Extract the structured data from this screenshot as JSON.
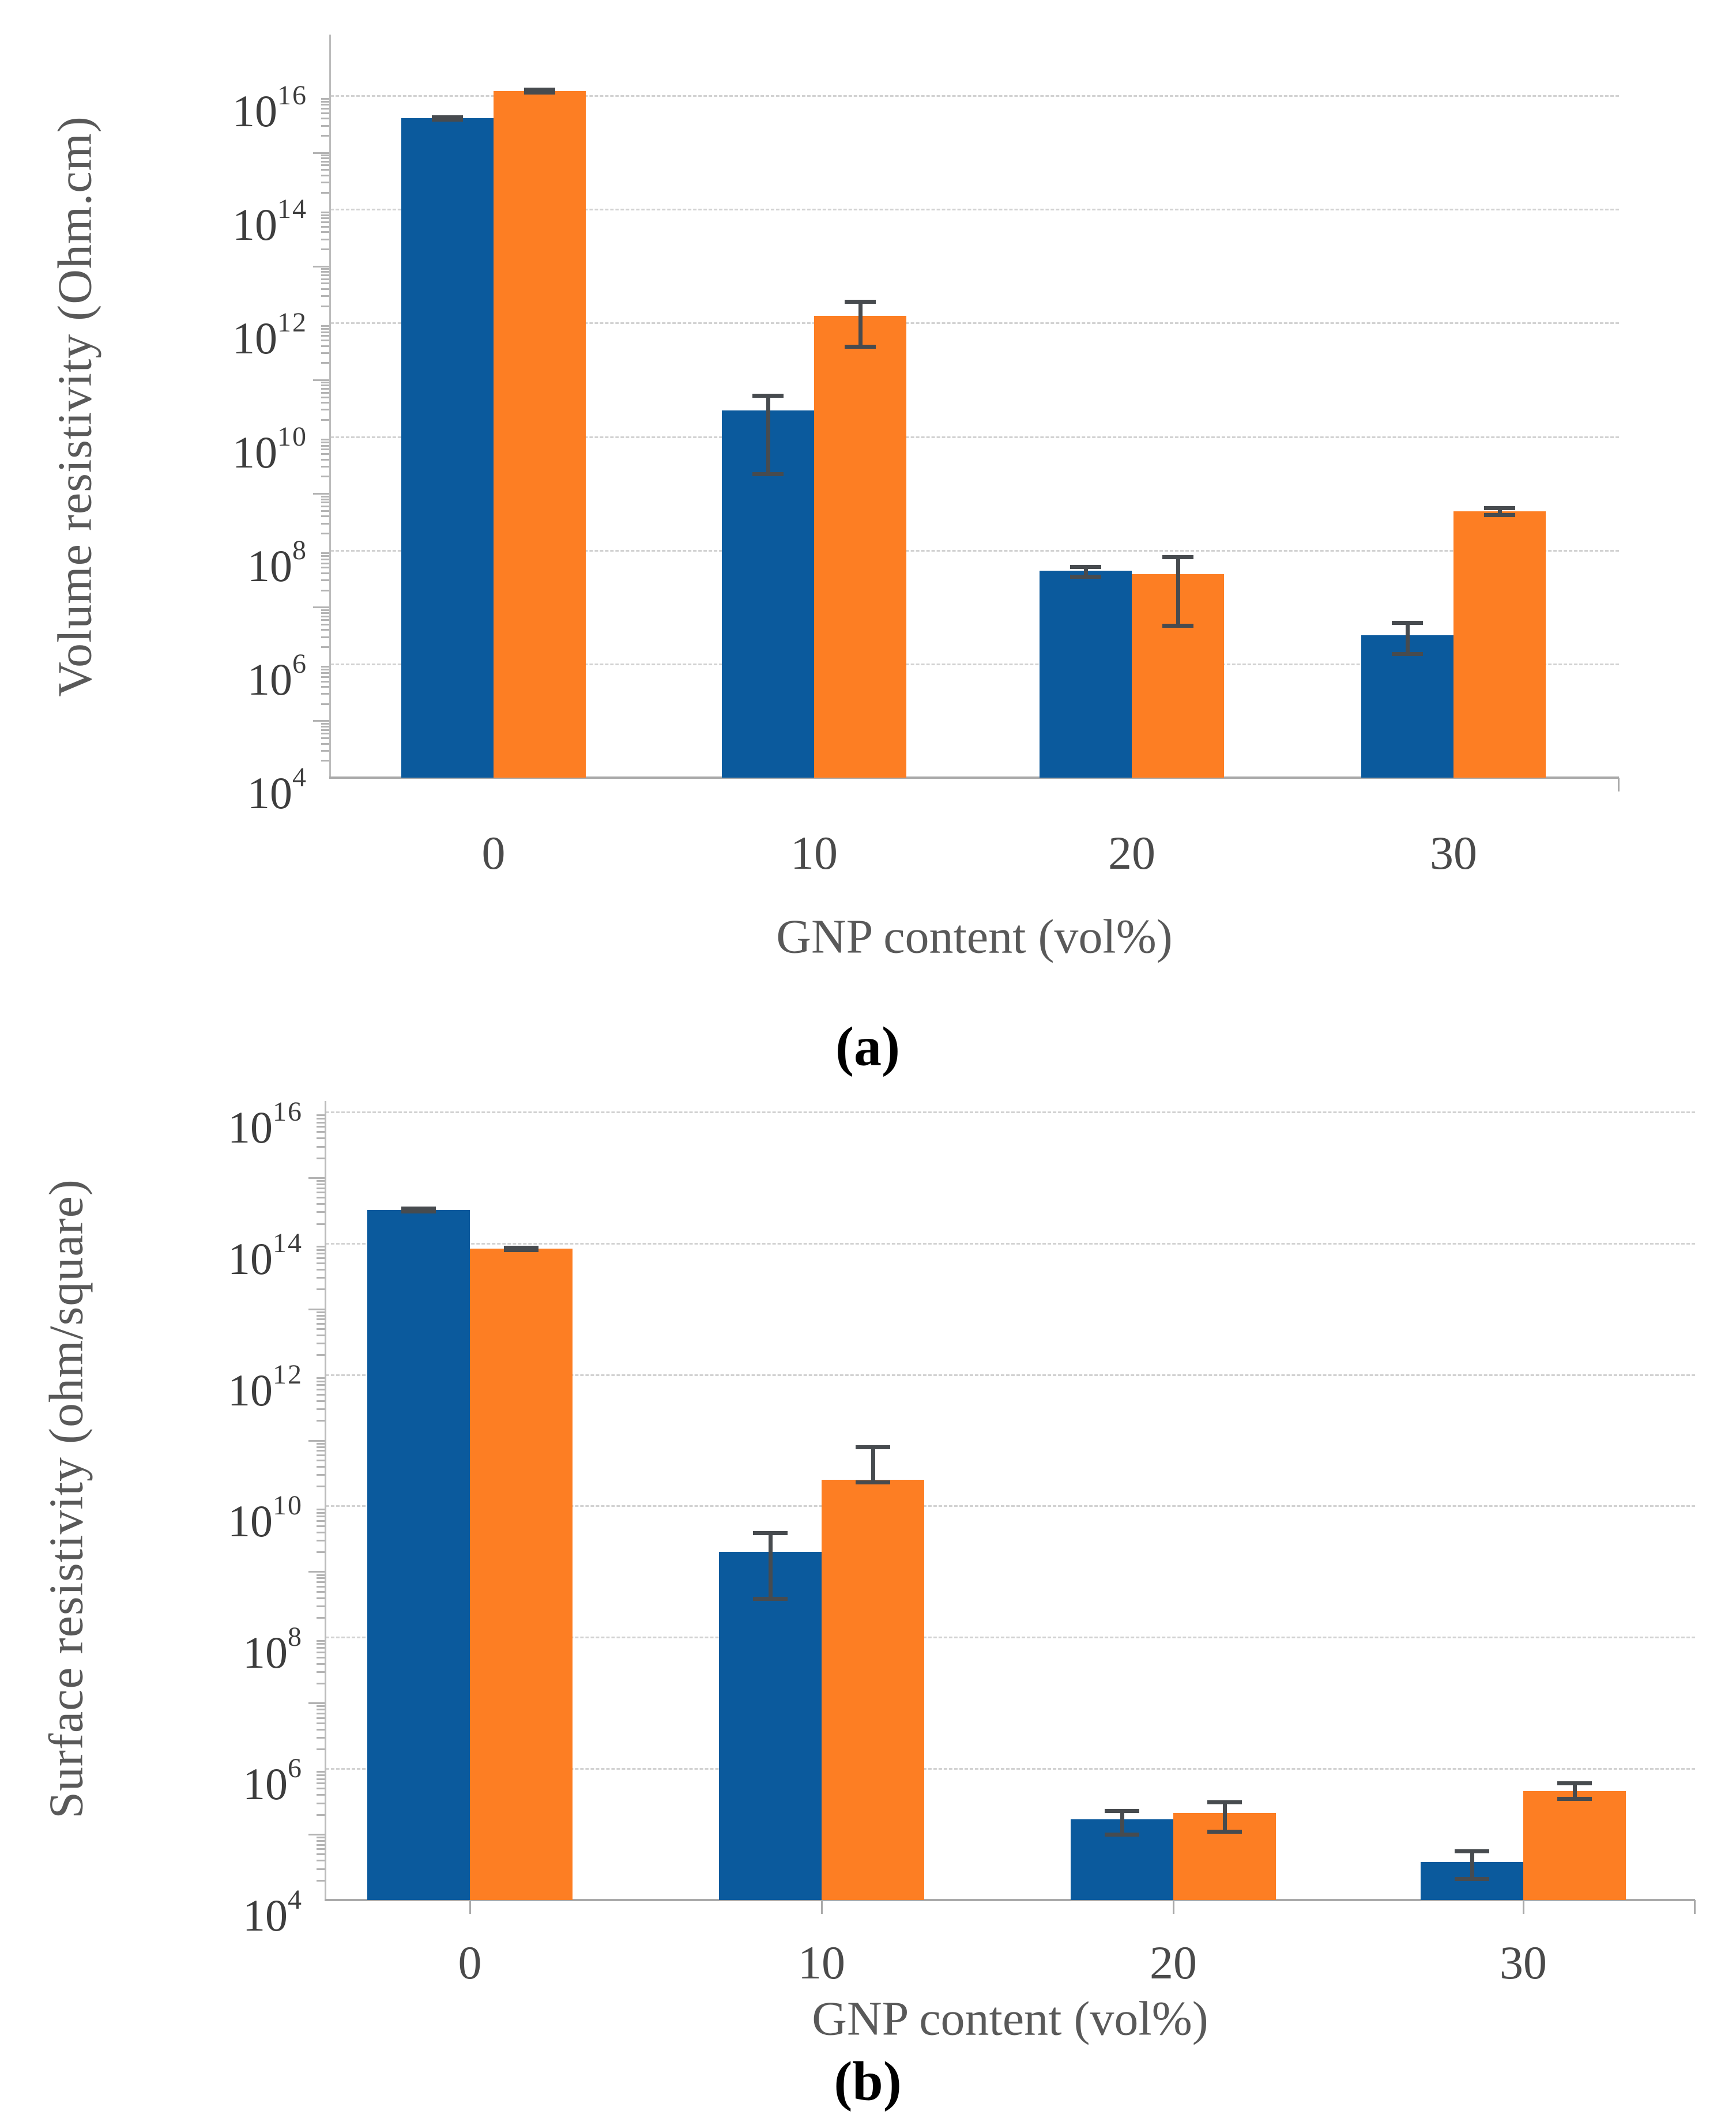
{
  "figure": {
    "background": "#ffffff",
    "x_axis_title": "GNP content (vol%)",
    "series_colors": {
      "blue": "#0b5a9d",
      "orange": "#fd7e23"
    }
  },
  "chart_data": [
    {
      "id": "a",
      "type": "bar",
      "caption": "(a)",
      "ylabel": "Volume resistivity (Ohm.cm)",
      "xlabel": "GNP content (vol%)",
      "yscale": "log",
      "ylim": [
        10000.0,
        1e+16
      ],
      "y_tick_exponents": [
        16,
        14,
        12,
        10,
        8,
        6,
        4
      ],
      "grid": true,
      "legend": "none",
      "categories": [
        "0",
        "10",
        "20",
        "30"
      ],
      "series": [
        {
          "name": "blue",
          "color": "#0b5a9d",
          "values": [
            4000000000000000.0,
            29000000000.0,
            44000000.0,
            3200000.0
          ],
          "err_lo": [
            3800000000000000.0,
            2200000000.0,
            35000000.0,
            1500000.0
          ],
          "err_hi": [
            4200000000000000.0,
            53000000000.0,
            52000000.0,
            5400000.0
          ]
        },
        {
          "name": "orange",
          "color": "#fd7e23",
          "values": [
            1.2e+16,
            1350000000000.0,
            38000000.0,
            490000000.0
          ],
          "err_lo": [
            1.15e+16,
            390000000000.0,
            4800000.0,
            420000000.0
          ],
          "err_hi": [
            1.3e+16,
            2400000000000.0,
            77000000.0,
            560000000.0
          ]
        }
      ]
    },
    {
      "id": "b",
      "type": "bar",
      "caption": "(b)",
      "ylabel": "Surface resistivity (ohm/square)",
      "xlabel": "GNP content (vol%)",
      "yscale": "log",
      "ylim": [
        10000.0,
        1e+16
      ],
      "y_tick_exponents": [
        16,
        14,
        12,
        10,
        8,
        6,
        4
      ],
      "grid": true,
      "legend": "none",
      "categories": [
        "0",
        "10",
        "20",
        "30"
      ],
      "series": [
        {
          "name": "blue",
          "color": "#0b5a9d",
          "values": [
            320000000000000.0,
            2000000000.0,
            170000.0,
            38000.0
          ],
          "err_lo": [
            310000000000000.0,
            390000000.0,
            100000.0,
            21000.0
          ],
          "err_hi": [
            340000000000000.0,
            3900000000.0,
            230000.0,
            56000.0
          ]
        },
        {
          "name": "orange",
          "color": "#fd7e23",
          "values": [
            83000000000000.0,
            25000000000.0,
            210000.0,
            460000.0
          ],
          "err_lo": [
            80000000000000.0,
            23000000000.0,
            110000.0,
            350000.0
          ],
          "err_hi": [
            86000000000000.0,
            79000000000.0,
            310000.0,
            600000.0
          ]
        }
      ]
    }
  ]
}
